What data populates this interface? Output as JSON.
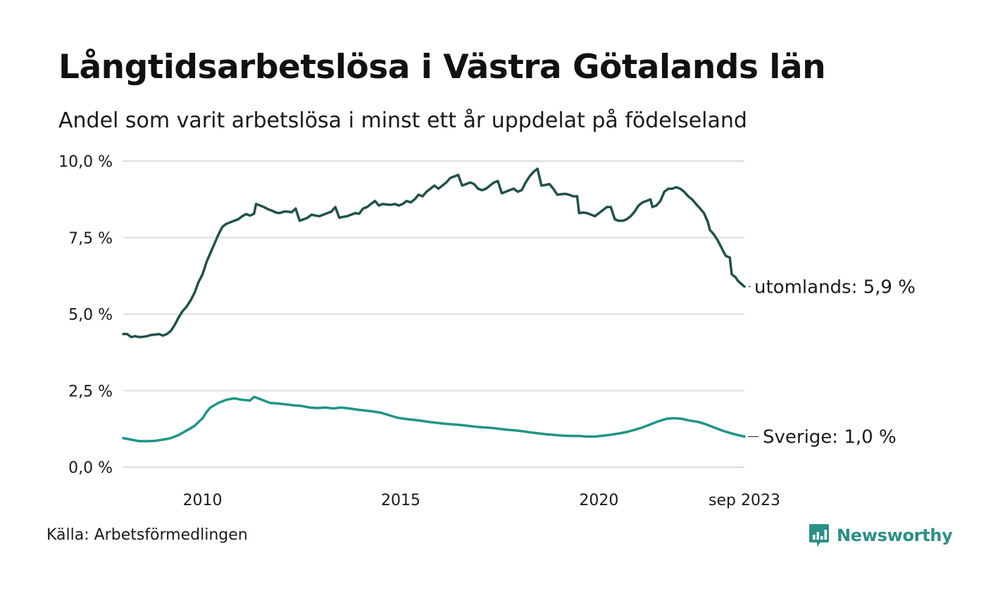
{
  "header": {
    "title": "Långtidsarbetslösa i Västra Götalands län",
    "subtitle": "Andel som varit arbetslösa i minst ett år uppdelat på födelseland"
  },
  "footer": {
    "source": "Källa: Arbetsförmedlingen",
    "brand": "Newsworthy"
  },
  "colors": {
    "utomlands": "#23504a",
    "sverige": "#1f9486",
    "grid": "#dddddd",
    "brand": "#2d8f85"
  },
  "chart_data": {
    "type": "line",
    "title": "Långtidsarbetslösa i Västra Götalands län",
    "xlabel": "",
    "ylabel": "",
    "xlim": [
      2008.0,
      2023.67
    ],
    "ylim": [
      0,
      10
    ],
    "y_ticks": [
      {
        "value": 0,
        "label": "0,0 %"
      },
      {
        "value": 2.5,
        "label": "2,5 %"
      },
      {
        "value": 5,
        "label": "5,0 %"
      },
      {
        "value": 7.5,
        "label": "7,5 %"
      },
      {
        "value": 10,
        "label": "10,0 %"
      }
    ],
    "x_ticks": [
      {
        "value": 2010,
        "label": "2010"
      },
      {
        "value": 2015,
        "label": "2015"
      },
      {
        "value": 2020,
        "label": "2020"
      },
      {
        "value": 2023.67,
        "label": "sep 2023"
      }
    ],
    "grid": true,
    "series": [
      {
        "name": "utomlands",
        "label": "utomlands: 5,9 %",
        "color_key": "utomlands",
        "points": [
          [
            2008.0,
            4.35
          ],
          [
            2008.1,
            4.35
          ],
          [
            2008.2,
            4.25
          ],
          [
            2008.3,
            4.28
          ],
          [
            2008.4,
            4.25
          ],
          [
            2008.5,
            4.26
          ],
          [
            2008.6,
            4.28
          ],
          [
            2008.7,
            4.32
          ],
          [
            2008.8,
            4.33
          ],
          [
            2008.9,
            4.35
          ],
          [
            2009.0,
            4.3
          ],
          [
            2009.1,
            4.35
          ],
          [
            2009.2,
            4.45
          ],
          [
            2009.3,
            4.65
          ],
          [
            2009.4,
            4.9
          ],
          [
            2009.5,
            5.1
          ],
          [
            2009.6,
            5.25
          ],
          [
            2009.7,
            5.45
          ],
          [
            2009.8,
            5.7
          ],
          [
            2009.9,
            6.05
          ],
          [
            2010.0,
            6.3
          ],
          [
            2010.1,
            6.7
          ],
          [
            2010.2,
            7.0
          ],
          [
            2010.3,
            7.3
          ],
          [
            2010.4,
            7.6
          ],
          [
            2010.5,
            7.85
          ],
          [
            2010.6,
            7.95
          ],
          [
            2010.7,
            8.0
          ],
          [
            2010.8,
            8.05
          ],
          [
            2010.9,
            8.1
          ],
          [
            2011.0,
            8.2
          ],
          [
            2011.1,
            8.27
          ],
          [
            2011.2,
            8.22
          ],
          [
            2011.3,
            8.28
          ],
          [
            2011.35,
            8.6
          ],
          [
            2011.45,
            8.55
          ],
          [
            2011.55,
            8.5
          ],
          [
            2011.65,
            8.43
          ],
          [
            2011.75,
            8.38
          ],
          [
            2011.85,
            8.32
          ],
          [
            2011.95,
            8.3
          ],
          [
            2012.05,
            8.35
          ],
          [
            2012.15,
            8.35
          ],
          [
            2012.25,
            8.33
          ],
          [
            2012.35,
            8.45
          ],
          [
            2012.45,
            8.05
          ],
          [
            2012.55,
            8.1
          ],
          [
            2012.65,
            8.15
          ],
          [
            2012.75,
            8.25
          ],
          [
            2012.85,
            8.22
          ],
          [
            2012.95,
            8.2
          ],
          [
            2013.05,
            8.25
          ],
          [
            2013.15,
            8.3
          ],
          [
            2013.25,
            8.35
          ],
          [
            2013.35,
            8.5
          ],
          [
            2013.45,
            8.15
          ],
          [
            2013.55,
            8.18
          ],
          [
            2013.65,
            8.2
          ],
          [
            2013.75,
            8.25
          ],
          [
            2013.85,
            8.3
          ],
          [
            2013.95,
            8.28
          ],
          [
            2014.05,
            8.45
          ],
          [
            2014.15,
            8.5
          ],
          [
            2014.25,
            8.6
          ],
          [
            2014.35,
            8.7
          ],
          [
            2014.45,
            8.55
          ],
          [
            2014.55,
            8.6
          ],
          [
            2014.65,
            8.58
          ],
          [
            2014.75,
            8.57
          ],
          [
            2014.85,
            8.6
          ],
          [
            2014.95,
            8.55
          ],
          [
            2015.05,
            8.6
          ],
          [
            2015.15,
            8.7
          ],
          [
            2015.25,
            8.65
          ],
          [
            2015.35,
            8.75
          ],
          [
            2015.45,
            8.9
          ],
          [
            2015.55,
            8.85
          ],
          [
            2015.65,
            9.0
          ],
          [
            2015.75,
            9.1
          ],
          [
            2015.85,
            9.2
          ],
          [
            2015.95,
            9.1
          ],
          [
            2016.05,
            9.2
          ],
          [
            2016.15,
            9.3
          ],
          [
            2016.25,
            9.45
          ],
          [
            2016.35,
            9.5
          ],
          [
            2016.45,
            9.55
          ],
          [
            2016.55,
            9.2
          ],
          [
            2016.65,
            9.25
          ],
          [
            2016.75,
            9.3
          ],
          [
            2016.85,
            9.25
          ],
          [
            2016.95,
            9.1
          ],
          [
            2017.05,
            9.05
          ],
          [
            2017.15,
            9.1
          ],
          [
            2017.25,
            9.2
          ],
          [
            2017.35,
            9.3
          ],
          [
            2017.45,
            9.35
          ],
          [
            2017.55,
            8.95
          ],
          [
            2017.65,
            9.0
          ],
          [
            2017.75,
            9.05
          ],
          [
            2017.85,
            9.1
          ],
          [
            2017.95,
            9.0
          ],
          [
            2018.05,
            9.05
          ],
          [
            2018.15,
            9.3
          ],
          [
            2018.25,
            9.5
          ],
          [
            2018.35,
            9.65
          ],
          [
            2018.45,
            9.75
          ],
          [
            2018.55,
            9.2
          ],
          [
            2018.65,
            9.22
          ],
          [
            2018.75,
            9.25
          ],
          [
            2018.85,
            9.1
          ],
          [
            2018.95,
            8.9
          ],
          [
            2019.05,
            8.92
          ],
          [
            2019.15,
            8.93
          ],
          [
            2019.25,
            8.9
          ],
          [
            2019.35,
            8.85
          ],
          [
            2019.45,
            8.85
          ],
          [
            2019.5,
            8.3
          ],
          [
            2019.6,
            8.32
          ],
          [
            2019.7,
            8.3
          ],
          [
            2019.8,
            8.25
          ],
          [
            2019.9,
            8.2
          ],
          [
            2020.0,
            8.3
          ],
          [
            2020.1,
            8.4
          ],
          [
            2020.2,
            8.5
          ],
          [
            2020.3,
            8.5
          ],
          [
            2020.4,
            8.1
          ],
          [
            2020.5,
            8.05
          ],
          [
            2020.6,
            8.05
          ],
          [
            2020.7,
            8.1
          ],
          [
            2020.8,
            8.2
          ],
          [
            2020.9,
            8.35
          ],
          [
            2021.0,
            8.55
          ],
          [
            2021.1,
            8.65
          ],
          [
            2021.2,
            8.7
          ],
          [
            2021.3,
            8.75
          ],
          [
            2021.35,
            8.5
          ],
          [
            2021.45,
            8.55
          ],
          [
            2021.55,
            8.7
          ],
          [
            2021.65,
            9.0
          ],
          [
            2021.75,
            9.1
          ],
          [
            2021.85,
            9.1
          ],
          [
            2021.95,
            9.15
          ],
          [
            2022.05,
            9.1
          ],
          [
            2022.15,
            9.0
          ],
          [
            2022.25,
            8.85
          ],
          [
            2022.35,
            8.75
          ],
          [
            2022.45,
            8.6
          ],
          [
            2022.55,
            8.45
          ],
          [
            2022.65,
            8.3
          ],
          [
            2022.75,
            8.0
          ],
          [
            2022.8,
            7.75
          ],
          [
            2022.9,
            7.6
          ],
          [
            2023.0,
            7.4
          ],
          [
            2023.1,
            7.15
          ],
          [
            2023.2,
            6.9
          ],
          [
            2023.3,
            6.85
          ],
          [
            2023.35,
            6.3
          ],
          [
            2023.45,
            6.2
          ],
          [
            2023.5,
            6.1
          ],
          [
            2023.58,
            6.0
          ],
          [
            2023.67,
            5.9
          ]
        ]
      },
      {
        "name": "Sverige",
        "label": "Sverige: 1,0 %",
        "color_key": "sverige",
        "points": [
          [
            2008.0,
            0.95
          ],
          [
            2008.2,
            0.9
          ],
          [
            2008.4,
            0.85
          ],
          [
            2008.6,
            0.85
          ],
          [
            2008.8,
            0.86
          ],
          [
            2009.0,
            0.9
          ],
          [
            2009.2,
            0.95
          ],
          [
            2009.4,
            1.05
          ],
          [
            2009.6,
            1.2
          ],
          [
            2009.8,
            1.35
          ],
          [
            2010.0,
            1.6
          ],
          [
            2010.1,
            1.8
          ],
          [
            2010.2,
            1.95
          ],
          [
            2010.4,
            2.1
          ],
          [
            2010.6,
            2.2
          ],
          [
            2010.8,
            2.25
          ],
          [
            2011.0,
            2.2
          ],
          [
            2011.2,
            2.18
          ],
          [
            2011.3,
            2.3
          ],
          [
            2011.5,
            2.2
          ],
          [
            2011.7,
            2.1
          ],
          [
            2011.9,
            2.08
          ],
          [
            2012.1,
            2.05
          ],
          [
            2012.3,
            2.02
          ],
          [
            2012.5,
            2.0
          ],
          [
            2012.7,
            1.95
          ],
          [
            2012.9,
            1.93
          ],
          [
            2013.1,
            1.95
          ],
          [
            2013.3,
            1.92
          ],
          [
            2013.5,
            1.95
          ],
          [
            2013.7,
            1.92
          ],
          [
            2013.9,
            1.88
          ],
          [
            2014.1,
            1.85
          ],
          [
            2014.3,
            1.82
          ],
          [
            2014.5,
            1.78
          ],
          [
            2014.7,
            1.7
          ],
          [
            2014.9,
            1.62
          ],
          [
            2015.1,
            1.58
          ],
          [
            2015.3,
            1.55
          ],
          [
            2015.5,
            1.52
          ],
          [
            2015.7,
            1.48
          ],
          [
            2015.9,
            1.45
          ],
          [
            2016.1,
            1.42
          ],
          [
            2016.3,
            1.4
          ],
          [
            2016.5,
            1.38
          ],
          [
            2016.7,
            1.35
          ],
          [
            2016.9,
            1.32
          ],
          [
            2017.1,
            1.3
          ],
          [
            2017.3,
            1.28
          ],
          [
            2017.5,
            1.25
          ],
          [
            2017.7,
            1.22
          ],
          [
            2017.9,
            1.2
          ],
          [
            2018.1,
            1.17
          ],
          [
            2018.3,
            1.13
          ],
          [
            2018.5,
            1.1
          ],
          [
            2018.7,
            1.07
          ],
          [
            2018.9,
            1.05
          ],
          [
            2019.1,
            1.03
          ],
          [
            2019.3,
            1.02
          ],
          [
            2019.5,
            1.02
          ],
          [
            2019.7,
            1.0
          ],
          [
            2019.9,
            1.0
          ],
          [
            2020.1,
            1.03
          ],
          [
            2020.3,
            1.06
          ],
          [
            2020.5,
            1.1
          ],
          [
            2020.7,
            1.15
          ],
          [
            2020.9,
            1.22
          ],
          [
            2021.1,
            1.3
          ],
          [
            2021.3,
            1.4
          ],
          [
            2021.5,
            1.5
          ],
          [
            2021.7,
            1.58
          ],
          [
            2021.9,
            1.6
          ],
          [
            2022.1,
            1.58
          ],
          [
            2022.3,
            1.52
          ],
          [
            2022.5,
            1.48
          ],
          [
            2022.7,
            1.4
          ],
          [
            2022.9,
            1.3
          ],
          [
            2023.1,
            1.2
          ],
          [
            2023.3,
            1.12
          ],
          [
            2023.5,
            1.05
          ],
          [
            2023.67,
            1.0
          ]
        ]
      }
    ]
  }
}
